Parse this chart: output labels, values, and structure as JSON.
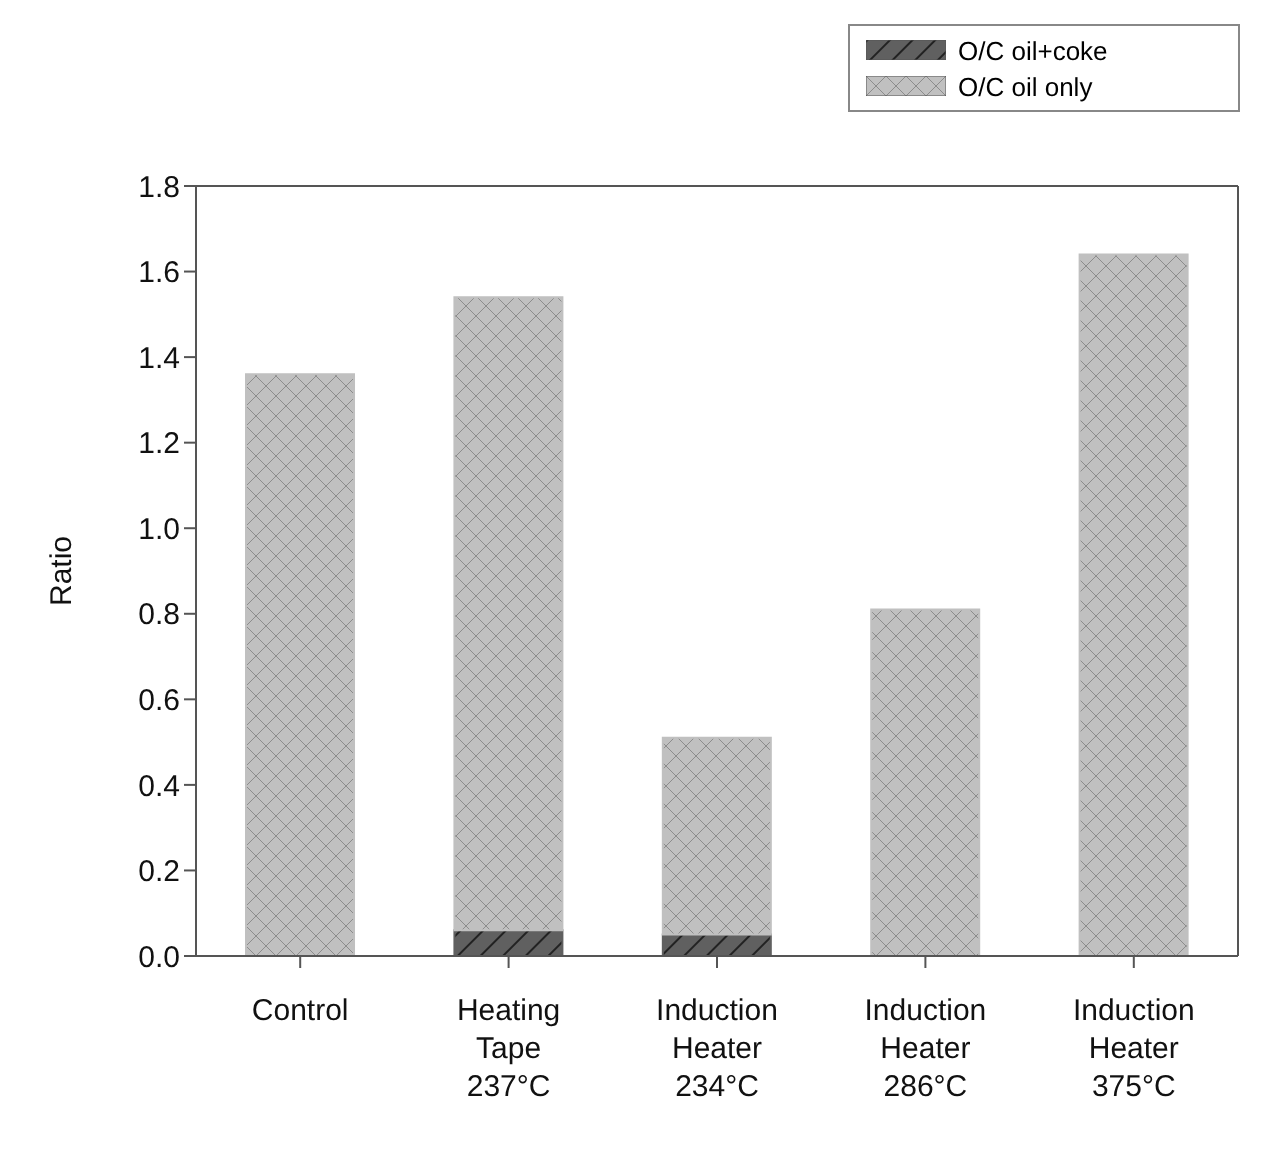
{
  "chart_data": {
    "type": "bar",
    "ylabel": "Ratio",
    "categories": [
      "Control",
      "Heating\nTape\n237°C",
      "Induction\nHeater\n234°C",
      "Induction\nHeater\n286°C",
      "Induction\nHeater\n375°C"
    ],
    "stacked": true,
    "series": [
      {
        "name": "O/C oil+coke",
        "color": "#606060",
        "values": [
          null,
          0.06,
          0.05,
          null,
          null
        ]
      },
      {
        "name": "O/C oil only",
        "color": "#c0c0c0",
        "values": [
          1.36,
          1.48,
          0.46,
          0.81,
          1.64
        ]
      }
    ],
    "ylim": [
      0,
      1.8
    ],
    "yticks": [
      {
        "value": 0,
        "label": "0.0"
      },
      0.2,
      0.4,
      0.6,
      0.8,
      {
        "value": 1,
        "label": "1.0"
      },
      1.2,
      1.4,
      1.6,
      1.8
    ],
    "grid": false,
    "legend": "top right"
  }
}
